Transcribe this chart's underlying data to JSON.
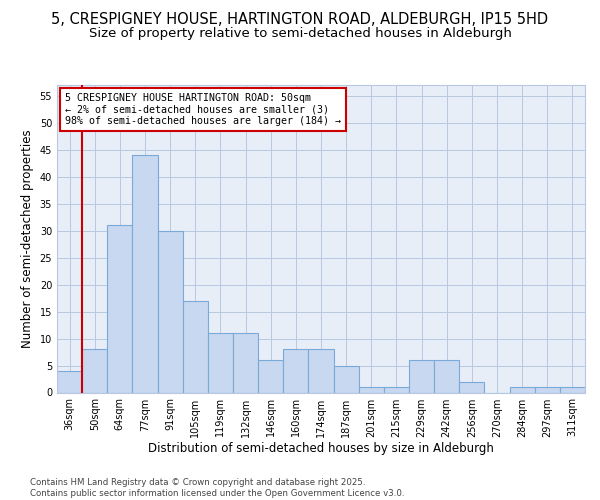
{
  "title1": "5, CRESPIGNEY HOUSE, HARTINGTON ROAD, ALDEBURGH, IP15 5HD",
  "title2": "Size of property relative to semi-detached houses in Aldeburgh",
  "xlabel": "Distribution of semi-detached houses by size in Aldeburgh",
  "ylabel": "Number of semi-detached properties",
  "bins": [
    "36sqm",
    "50sqm",
    "64sqm",
    "77sqm",
    "91sqm",
    "105sqm",
    "119sqm",
    "132sqm",
    "146sqm",
    "160sqm",
    "174sqm",
    "187sqm",
    "201sqm",
    "215sqm",
    "229sqm",
    "242sqm",
    "256sqm",
    "270sqm",
    "284sqm",
    "297sqm",
    "311sqm"
  ],
  "values": [
    4,
    8,
    31,
    44,
    30,
    17,
    11,
    11,
    6,
    8,
    8,
    5,
    1,
    1,
    6,
    6,
    2,
    0,
    1,
    1,
    1
  ],
  "bar_color": "#c8d8f0",
  "bar_edge_color": "#7aaad8",
  "property_line_label": "5 CRESPIGNEY HOUSE HARTINGTON ROAD: 50sqm",
  "annotation_line1": "← 2% of semi-detached houses are smaller (3)",
  "annotation_line2": "98% of semi-detached houses are larger (184) →",
  "vline_color": "#cc0000",
  "vline_x_index": 1,
  "ylim": [
    0,
    57
  ],
  "yticks": [
    0,
    5,
    10,
    15,
    20,
    25,
    30,
    35,
    40,
    45,
    50,
    55
  ],
  "footer": "Contains HM Land Registry data © Crown copyright and database right 2025.\nContains public sector information licensed under the Open Government Licence v3.0.",
  "bg_color": "#ffffff",
  "plot_bg_color": "#e8eef8",
  "title_fontsize": 10.5,
  "subtitle_fontsize": 9.5,
  "tick_fontsize": 7,
  "label_fontsize": 8.5
}
